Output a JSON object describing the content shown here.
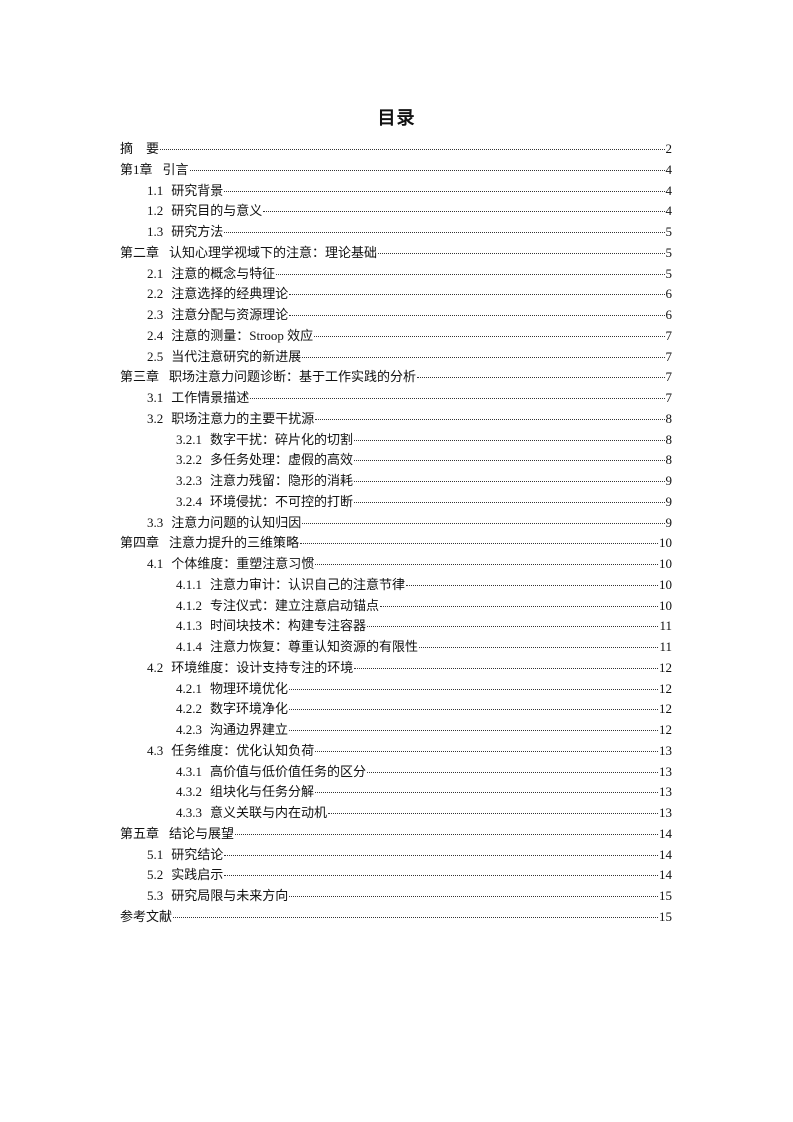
{
  "title": "目录",
  "entries": [
    {
      "level": 1,
      "num": "",
      "title": "摘　要",
      "page": "2"
    },
    {
      "level": 1,
      "num": "第1章",
      "title": " 引言",
      "page": "4"
    },
    {
      "level": 2,
      "num": "1.1",
      "title": "研究背景",
      "page": "4"
    },
    {
      "level": 2,
      "num": "1.2",
      "title": "研究目的与意义",
      "page": "4"
    },
    {
      "level": 2,
      "num": "1.3",
      "title": "研究方法",
      "page": "5"
    },
    {
      "level": 1,
      "num": "第二章",
      "title": "认知心理学视域下的注意：理论基础",
      "page": "5"
    },
    {
      "level": 2,
      "num": "2.1",
      "title": "注意的概念与特征",
      "page": "5"
    },
    {
      "level": 2,
      "num": "2.2",
      "title": "注意选择的经典理论",
      "page": "6"
    },
    {
      "level": 2,
      "num": "2.3",
      "title": "注意分配与资源理论",
      "page": "6"
    },
    {
      "level": 2,
      "num": "2.4",
      "title": "注意的测量：Stroop 效应",
      "page": "7"
    },
    {
      "level": 2,
      "num": "2.5",
      "title": "当代注意研究的新进展",
      "page": "7"
    },
    {
      "level": 1,
      "num": "第三章",
      "title": "职场注意力问题诊断：基于工作实践的分析",
      "page": "7"
    },
    {
      "level": 2,
      "num": "3.1",
      "title": "工作情景描述",
      "page": "7"
    },
    {
      "level": 2,
      "num": "3.2",
      "title": "职场注意力的主要干扰源",
      "page": "8"
    },
    {
      "level": 3,
      "num": "3.2.1",
      "title": "数字干扰：碎片化的切割",
      "page": "8"
    },
    {
      "level": 3,
      "num": "3.2.2",
      "title": "多任务处理：虚假的高效",
      "page": "8"
    },
    {
      "level": 3,
      "num": "3.2.3",
      "title": "注意力残留：隐形的消耗",
      "page": "9"
    },
    {
      "level": 3,
      "num": "3.2.4",
      "title": "环境侵扰：不可控的打断",
      "page": "9"
    },
    {
      "level": 2,
      "num": "3.3",
      "title": "注意力问题的认知归因",
      "page": "9"
    },
    {
      "level": 1,
      "num": "第四章",
      "title": "注意力提升的三维策略",
      "page": "10"
    },
    {
      "level": 2,
      "num": "4.1",
      "title": "个体维度：重塑注意习惯",
      "page": "10"
    },
    {
      "level": 3,
      "num": "4.1.1",
      "title": "注意力审计：认识自己的注意节律",
      "page": "10"
    },
    {
      "level": 3,
      "num": "4.1.2",
      "title": "专注仪式：建立注意启动锚点",
      "page": "10"
    },
    {
      "level": 3,
      "num": "4.1.3",
      "title": "时间块技术：构建专注容器",
      "page": "11"
    },
    {
      "level": 3,
      "num": "4.1.4",
      "title": "注意力恢复：尊重认知资源的有限性",
      "page": "11"
    },
    {
      "level": 2,
      "num": "4.2",
      "title": "环境维度：设计支持专注的环境",
      "page": "12"
    },
    {
      "level": 3,
      "num": "4.2.1",
      "title": "物理环境优化",
      "page": "12"
    },
    {
      "level": 3,
      "num": "4.2.2",
      "title": "数字环境净化",
      "page": "12"
    },
    {
      "level": 3,
      "num": "4.2.3",
      "title": "沟通边界建立",
      "page": "12"
    },
    {
      "level": 2,
      "num": "4.3",
      "title": "任务维度：优化认知负荷",
      "page": "13"
    },
    {
      "level": 3,
      "num": "4.3.1",
      "title": "高价值与低价值任务的区分",
      "page": "13"
    },
    {
      "level": 3,
      "num": "4.3.2",
      "title": "组块化与任务分解",
      "page": "13"
    },
    {
      "level": 3,
      "num": "4.3.3",
      "title": "意义关联与内在动机",
      "page": "13"
    },
    {
      "level": 1,
      "num": "第五章",
      "title": "结论与展望",
      "page": "14"
    },
    {
      "level": 2,
      "num": "5.1",
      "title": "研究结论",
      "page": "14"
    },
    {
      "level": 2,
      "num": "5.2",
      "title": "实践启示",
      "page": "14"
    },
    {
      "level": 2,
      "num": "5.3",
      "title": "研究局限与未来方向",
      "page": "15"
    },
    {
      "level": 1,
      "num": "",
      "title": "参考文献",
      "page": "15"
    }
  ]
}
